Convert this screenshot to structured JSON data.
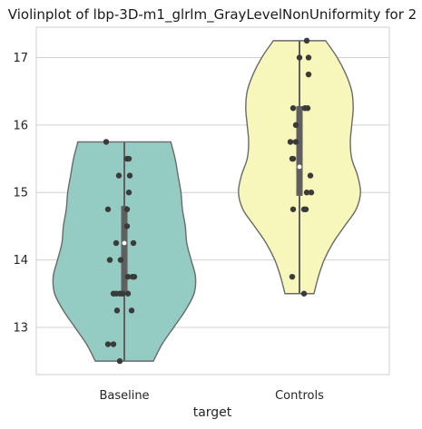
{
  "chart_data": {
    "type": "violin",
    "title": "Violinplot of lbp-3D-m1_glrlm_GrayLevelNonUniformity for 2",
    "xlabel": "target",
    "ylabel": "",
    "categories": [
      "Baseline",
      "Controls"
    ],
    "ylim": [
      12.3,
      17.45
    ],
    "yticks": [
      13,
      14,
      15,
      16,
      17
    ],
    "grid": true,
    "colors": {
      "Baseline": "#94cbc2",
      "Controls": "#f7f6bb",
      "outline": "#6a6a6a",
      "points": "#3a3a3a",
      "box": "#5f5f5f"
    },
    "violins": [
      {
        "name": "Baseline",
        "range": [
          12.5,
          15.75
        ],
        "quartiles": [
          13.5,
          14.25,
          14.8
        ],
        "density": [
          [
            12.5,
            0.4
          ],
          [
            12.75,
            0.52
          ],
          [
            13.0,
            0.68
          ],
          [
            13.25,
            0.84
          ],
          [
            13.5,
            0.96
          ],
          [
            13.75,
            0.98
          ],
          [
            14.0,
            0.92
          ],
          [
            14.25,
            0.86
          ],
          [
            14.5,
            0.84
          ],
          [
            14.75,
            0.8
          ],
          [
            15.0,
            0.78
          ],
          [
            15.25,
            0.74
          ],
          [
            15.5,
            0.7
          ],
          [
            15.75,
            0.64
          ]
        ],
        "points": [
          [
            -0.05,
            12.5
          ],
          [
            -0.18,
            12.75
          ],
          [
            -0.12,
            12.75
          ],
          [
            -0.08,
            13.25
          ],
          [
            0.08,
            13.25
          ],
          [
            -0.12,
            13.5
          ],
          [
            -0.09,
            13.5
          ],
          [
            -0.05,
            13.5
          ],
          [
            -0.02,
            13.5
          ],
          [
            0.04,
            13.5
          ],
          [
            0.04,
            13.75
          ],
          [
            0.09,
            13.75
          ],
          [
            0.11,
            13.75
          ],
          [
            -0.16,
            14.0
          ],
          [
            -0.04,
            14.0
          ],
          [
            -0.09,
            14.25
          ],
          [
            0.1,
            14.25
          ],
          [
            0.03,
            14.5
          ],
          [
            -0.18,
            14.75
          ],
          [
            0.03,
            14.75
          ],
          [
            0.05,
            15.0
          ],
          [
            -0.06,
            15.25
          ],
          [
            0.06,
            15.25
          ],
          [
            0.03,
            15.5
          ],
          [
            0.05,
            15.5
          ],
          [
            -0.2,
            15.75
          ]
        ]
      },
      {
        "name": "Controls",
        "range": [
          13.5,
          17.25
        ],
        "quartiles": [
          14.95,
          15.38,
          16.28
        ],
        "density": [
          [
            13.5,
            0.2
          ],
          [
            13.75,
            0.26
          ],
          [
            14.0,
            0.34
          ],
          [
            14.25,
            0.46
          ],
          [
            14.5,
            0.62
          ],
          [
            14.75,
            0.78
          ],
          [
            15.0,
            0.84
          ],
          [
            15.25,
            0.8
          ],
          [
            15.5,
            0.72
          ],
          [
            15.75,
            0.7
          ],
          [
            16.0,
            0.72
          ],
          [
            16.25,
            0.74
          ],
          [
            16.5,
            0.72
          ],
          [
            16.75,
            0.64
          ],
          [
            17.0,
            0.52
          ],
          [
            17.25,
            0.36
          ]
        ],
        "points": [
          [
            0.05,
            13.5
          ],
          [
            -0.08,
            13.75
          ],
          [
            -0.07,
            14.75
          ],
          [
            0.05,
            14.75
          ],
          [
            0.07,
            14.75
          ],
          [
            0.08,
            15.0
          ],
          [
            0.13,
            15.0
          ],
          [
            0.12,
            15.25
          ],
          [
            -0.08,
            15.5
          ],
          [
            -0.07,
            15.5
          ],
          [
            -0.1,
            15.75
          ],
          [
            -0.04,
            15.75
          ],
          [
            -0.04,
            16.0
          ],
          [
            -0.07,
            16.25
          ],
          [
            0.06,
            16.25
          ],
          [
            0.09,
            16.25
          ],
          [
            0.1,
            16.75
          ],
          [
            0.0,
            17.0
          ],
          [
            0.1,
            17.0
          ],
          [
            0.08,
            17.25
          ]
        ]
      }
    ]
  }
}
